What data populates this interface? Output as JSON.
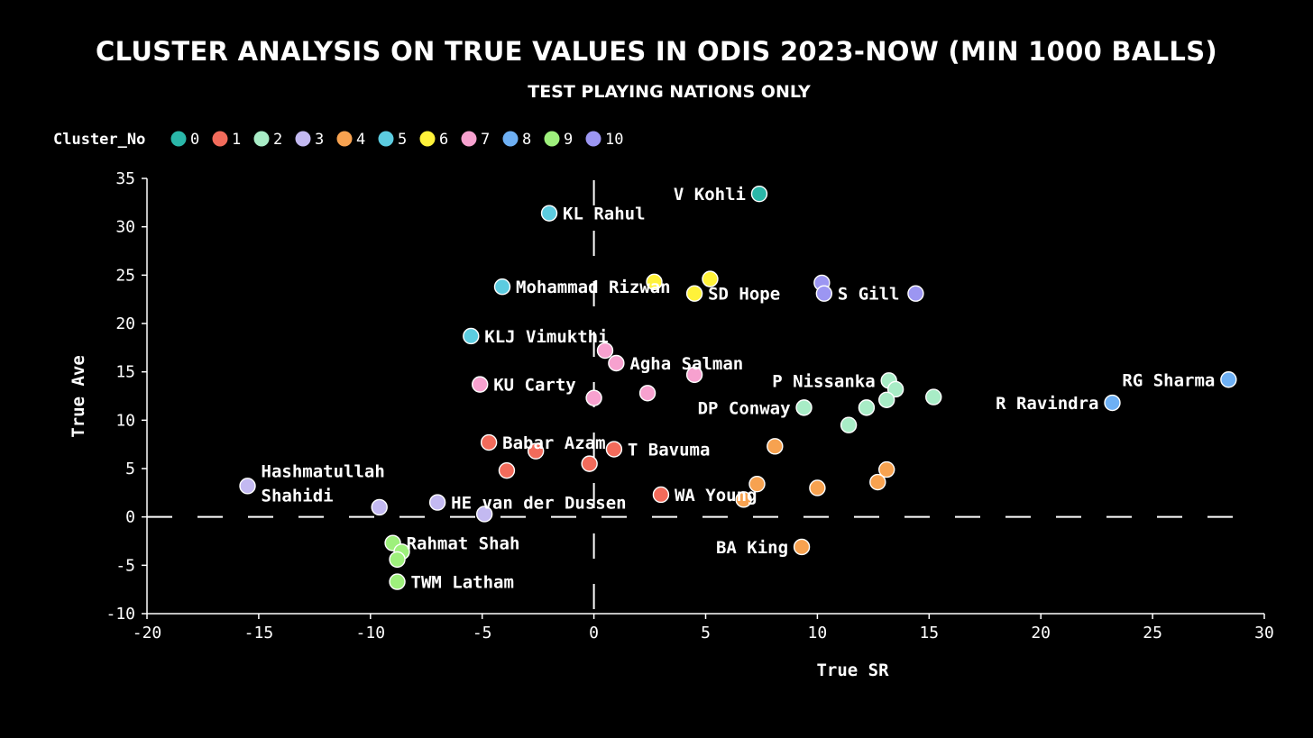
{
  "chart_data": {
    "type": "scatter",
    "title": "Cluster Analysis on True Values in ODIs 2023-Now (Min 1000 Balls)",
    "subtitle": "Test Playing Nations Only",
    "xlabel": "True SR",
    "ylabel": "True Ave",
    "xlim": [
      -20,
      30
    ],
    "ylim": [
      -10,
      35
    ],
    "xticks": [
      -20,
      -15,
      -10,
      -5,
      0,
      5,
      10,
      15,
      20,
      25,
      30
    ],
    "yticks": [
      -10,
      -5,
      0,
      5,
      10,
      15,
      20,
      25,
      30,
      35
    ],
    "reference_lines": {
      "x": 0,
      "y": 0,
      "style": "dashed"
    },
    "legend": {
      "title": "Cluster_No",
      "placement": "top-left",
      "entries": [
        {
          "label": "0",
          "color": "#2ab7a9"
        },
        {
          "label": "1",
          "color": "#f26b5b"
        },
        {
          "label": "2",
          "color": "#a8ecc6"
        },
        {
          "label": "3",
          "color": "#c3b9f1"
        },
        {
          "label": "4",
          "color": "#f7a250"
        },
        {
          "label": "5",
          "color": "#5ccce0"
        },
        {
          "label": "6",
          "color": "#fff23a"
        },
        {
          "label": "7",
          "color": "#f7a1cf"
        },
        {
          "label": "8",
          "color": "#6eb0f4"
        },
        {
          "label": "9",
          "color": "#9ef07c"
        },
        {
          "label": "10",
          "color": "#9c96f2"
        }
      ]
    },
    "points": [
      {
        "x": 7.4,
        "y": 33.4,
        "cluster": 0,
        "label": "V Kohli",
        "anchor": "left"
      },
      {
        "x": -2.0,
        "y": 31.4,
        "cluster": 5,
        "label": "KL Rahul",
        "anchor": "right"
      },
      {
        "x": -4.1,
        "y": 23.8,
        "cluster": 5,
        "label": "Mohammad Rizwan",
        "anchor": "right"
      },
      {
        "x": -5.5,
        "y": 18.7,
        "cluster": 5,
        "label": "KLJ Vimukthi",
        "anchor": "right"
      },
      {
        "x": 2.7,
        "y": 24.3,
        "cluster": 6,
        "label": ""
      },
      {
        "x": 5.2,
        "y": 24.6,
        "cluster": 6,
        "label": ""
      },
      {
        "x": 4.5,
        "y": 23.1,
        "cluster": 6,
        "label": "SD Hope",
        "anchor": "right"
      },
      {
        "x": 10.2,
        "y": 24.2,
        "cluster": 10,
        "label": ""
      },
      {
        "x": 10.3,
        "y": 23.1,
        "cluster": 10,
        "label": "S Gill",
        "anchor": "right"
      },
      {
        "x": 14.4,
        "y": 23.1,
        "cluster": 10,
        "label": ""
      },
      {
        "x": 0.5,
        "y": 17.2,
        "cluster": 7,
        "label": ""
      },
      {
        "x": 1.0,
        "y": 15.9,
        "cluster": 7,
        "label": "Agha Salman",
        "anchor": "right"
      },
      {
        "x": 4.5,
        "y": 14.7,
        "cluster": 7,
        "label": ""
      },
      {
        "x": -5.1,
        "y": 13.7,
        "cluster": 7,
        "label": "KU Carty",
        "anchor": "right"
      },
      {
        "x": 2.4,
        "y": 12.8,
        "cluster": 7,
        "label": ""
      },
      {
        "x": 0.0,
        "y": 12.3,
        "cluster": 7,
        "label": ""
      },
      {
        "x": 13.2,
        "y": 14.1,
        "cluster": 2,
        "label": "P Nissanka",
        "anchor": "left"
      },
      {
        "x": 13.5,
        "y": 13.2,
        "cluster": 2,
        "label": ""
      },
      {
        "x": 13.1,
        "y": 12.1,
        "cluster": 2,
        "label": ""
      },
      {
        "x": 15.2,
        "y": 12.4,
        "cluster": 2,
        "label": ""
      },
      {
        "x": 9.4,
        "y": 11.3,
        "cluster": 2,
        "label": "DP Conway",
        "anchor": "left"
      },
      {
        "x": 12.2,
        "y": 11.3,
        "cluster": 2,
        "label": ""
      },
      {
        "x": 11.4,
        "y": 9.5,
        "cluster": 2,
        "label": ""
      },
      {
        "x": 28.4,
        "y": 14.2,
        "cluster": 8,
        "label": "RG Sharma",
        "anchor": "left"
      },
      {
        "x": 23.2,
        "y": 11.8,
        "cluster": 8,
        "label": "R Ravindra",
        "anchor": "left"
      },
      {
        "x": -4.7,
        "y": 7.7,
        "cluster": 1,
        "label": "Babar Azam",
        "anchor": "right"
      },
      {
        "x": -2.6,
        "y": 6.8,
        "cluster": 1,
        "label": ""
      },
      {
        "x": 0.9,
        "y": 7.0,
        "cluster": 1,
        "label": "T Bavuma",
        "anchor": "right"
      },
      {
        "x": -3.9,
        "y": 4.8,
        "cluster": 1,
        "label": ""
      },
      {
        "x": -0.2,
        "y": 5.5,
        "cluster": 1,
        "label": ""
      },
      {
        "x": 3.0,
        "y": 2.3,
        "cluster": 1,
        "label": "WA Young",
        "anchor": "right"
      },
      {
        "x": 8.1,
        "y": 7.3,
        "cluster": 4,
        "label": ""
      },
      {
        "x": 13.1,
        "y": 4.9,
        "cluster": 4,
        "label": ""
      },
      {
        "x": 12.7,
        "y": 3.6,
        "cluster": 4,
        "label": ""
      },
      {
        "x": 7.3,
        "y": 3.4,
        "cluster": 4,
        "label": ""
      },
      {
        "x": 10.0,
        "y": 3.0,
        "cluster": 4,
        "label": ""
      },
      {
        "x": 6.7,
        "y": 1.8,
        "cluster": 4,
        "label": ""
      },
      {
        "x": 9.3,
        "y": -3.1,
        "cluster": 4,
        "label": "BA King",
        "anchor": "left"
      },
      {
        "x": -15.5,
        "y": 3.2,
        "cluster": 3,
        "label": "Hashmatullah Shahidi",
        "anchor": "right",
        "multiline": [
          "Hashmatullah",
          "Shahidi"
        ]
      },
      {
        "x": -9.6,
        "y": 1.0,
        "cluster": 3,
        "label": ""
      },
      {
        "x": -7.0,
        "y": 1.5,
        "cluster": 3,
        "label": "HE van der Dussen",
        "anchor": "right"
      },
      {
        "x": -4.9,
        "y": 0.3,
        "cluster": 3,
        "label": ""
      },
      {
        "x": -9.0,
        "y": -2.7,
        "cluster": 9,
        "label": "Rahmat Shah",
        "anchor": "right"
      },
      {
        "x": -8.6,
        "y": -3.6,
        "cluster": 9,
        "label": ""
      },
      {
        "x": -8.8,
        "y": -4.4,
        "cluster": 9,
        "label": ""
      },
      {
        "x": -8.8,
        "y": -6.7,
        "cluster": 9,
        "label": "TWM Latham",
        "anchor": "right"
      }
    ]
  }
}
